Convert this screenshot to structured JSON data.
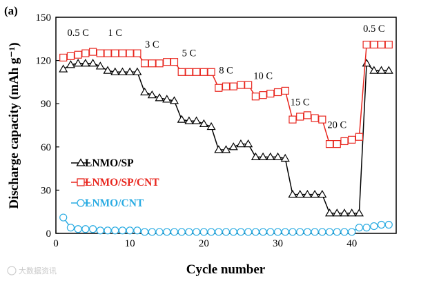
{
  "chart_data": {
    "type": "line",
    "panel_label": "(a)",
    "xlabel": "Cycle number",
    "ylabel": "Discharge capacity (mAh g⁻¹)",
    "xlim": [
      0,
      46
    ],
    "ylim": [
      0,
      150
    ],
    "xticks": [
      0,
      10,
      20,
      30,
      40
    ],
    "yticks": [
      0,
      30,
      60,
      90,
      120,
      150
    ],
    "x": [
      1,
      2,
      3,
      4,
      5,
      6,
      7,
      8,
      9,
      10,
      11,
      12,
      13,
      14,
      15,
      16,
      17,
      18,
      19,
      20,
      21,
      22,
      23,
      24,
      25,
      26,
      27,
      28,
      29,
      30,
      31,
      32,
      33,
      34,
      35,
      36,
      37,
      38,
      39,
      40,
      41,
      42,
      43,
      44,
      45
    ],
    "series": [
      {
        "name": "LNMO/SP",
        "marker": "triangle",
        "color": "#000000",
        "values": [
          114,
          117,
          118,
          118,
          118,
          116,
          113,
          112,
          112,
          112,
          112,
          98,
          96,
          94,
          93,
          92,
          79,
          78,
          78,
          76,
          74,
          58,
          58,
          60,
          62,
          62,
          53,
          53,
          53,
          53,
          52,
          27,
          27,
          27,
          27,
          27,
          14,
          14,
          14,
          14,
          14,
          118,
          113,
          113,
          113
        ]
      },
      {
        "name": "LNMO/SP/CNT",
        "marker": "square",
        "color": "#e8261e",
        "values": [
          122,
          123,
          124,
          125,
          126,
          125,
          125,
          125,
          125,
          125,
          125,
          118,
          118,
          118,
          119,
          119,
          112,
          112,
          112,
          112,
          112,
          101,
          102,
          102,
          103,
          103,
          95,
          96,
          97,
          98,
          99,
          79,
          81,
          82,
          80,
          79,
          62,
          62,
          64,
          65,
          67,
          131,
          131,
          131,
          131
        ]
      },
      {
        "name": "LNMO/CNT",
        "marker": "circle",
        "color": "#29abe2",
        "values": [
          11,
          4,
          3,
          3,
          3,
          2,
          2,
          2,
          2,
          2,
          2,
          1,
          1,
          1,
          1,
          1,
          1,
          1,
          1,
          1,
          1,
          1,
          1,
          1,
          1,
          1,
          1,
          1,
          1,
          1,
          1,
          1,
          1,
          1,
          1,
          1,
          1,
          1,
          1,
          1,
          4,
          4,
          5,
          6,
          6
        ]
      }
    ],
    "rate_labels": [
      {
        "text": "0.5 C",
        "x": 3,
        "y": 137
      },
      {
        "text": "1 C",
        "x": 8,
        "y": 137
      },
      {
        "text": "3 C",
        "x": 13,
        "y": 129
      },
      {
        "text": "5 C",
        "x": 18,
        "y": 123
      },
      {
        "text": "8 C",
        "x": 23,
        "y": 111
      },
      {
        "text": "10 C",
        "x": 28,
        "y": 107
      },
      {
        "text": "15 C",
        "x": 33,
        "y": 89
      },
      {
        "text": "20 C",
        "x": 38,
        "y": 73
      },
      {
        "text": "0.5 C",
        "x": 43,
        "y": 140
      }
    ],
    "legend_position": "bottom-left"
  },
  "watermark": "大数据资讯"
}
